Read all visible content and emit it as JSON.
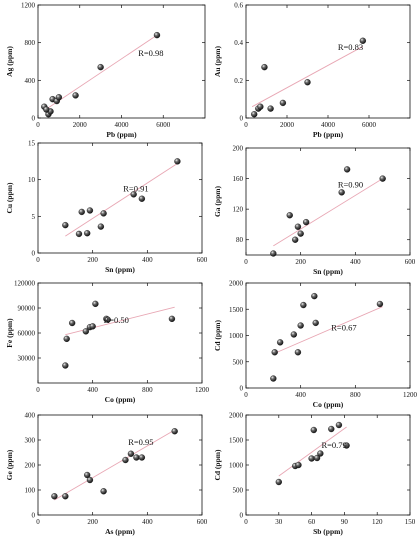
{
  "chart_data": [
    {
      "type": "scatter",
      "xlabel": "Pb (ppm)",
      "ylabel": "Ag (ppm)",
      "xlim": [
        0,
        8000
      ],
      "ylim": [
        0,
        1200
      ],
      "xticks": [
        0,
        2000,
        4000,
        6000
      ],
      "yticks": [
        0,
        400,
        800,
        1200
      ],
      "x": [
        300,
        500,
        600,
        400,
        700,
        900,
        1000,
        1800,
        3000,
        5700
      ],
      "y": [
        120,
        40,
        70,
        90,
        200,
        180,
        220,
        240,
        540,
        880
      ],
      "fit": [
        [
          300,
          80
        ],
        [
          5700,
          880
        ]
      ],
      "annotation": "R=0.98"
    },
    {
      "type": "scatter",
      "xlabel": "Pb (ppm)",
      "ylabel": "Au (ppm)",
      "xlim": [
        0,
        8000
      ],
      "ylim": [
        0,
        0.6
      ],
      "xticks": [
        0,
        2000,
        4000,
        6000
      ],
      "yticks": [
        0,
        0.2,
        0.4,
        0.6
      ],
      "x": [
        400,
        600,
        700,
        900,
        1200,
        1800,
        3000,
        5700
      ],
      "y": [
        0.02,
        0.05,
        0.06,
        0.27,
        0.05,
        0.08,
        0.19,
        0.41
      ],
      "fit": [
        [
          300,
          0.06
        ],
        [
          5700,
          0.38
        ]
      ],
      "annotation": "R=0.83"
    },
    {
      "type": "scatter",
      "xlabel": "Sn (ppm)",
      "ylabel": "Cu (ppm)",
      "xlim": [
        0,
        600
      ],
      "ylim": [
        0,
        15
      ],
      "xticks": [
        0,
        200,
        400,
        600
      ],
      "yticks": [
        0,
        5,
        10,
        15
      ],
      "x": [
        100,
        150,
        160,
        180,
        190,
        230,
        240,
        350,
        380,
        510
      ],
      "y": [
        3.8,
        2.6,
        5.6,
        2.7,
        5.8,
        3.6,
        5.4,
        8.0,
        7.4,
        12.5
      ],
      "fit": [
        [
          100,
          2.3
        ],
        [
          510,
          12.2
        ]
      ],
      "annotation": "R=0.91"
    },
    {
      "type": "scatter",
      "xlabel": "Sn (ppm)",
      "ylabel": "Ga (ppm)",
      "xlim": [
        0,
        600
      ],
      "ylim": [
        60,
        200
      ],
      "xticks": [
        0,
        200,
        400,
        600
      ],
      "yticks": [
        80,
        120,
        160,
        200
      ],
      "x": [
        100,
        160,
        180,
        190,
        200,
        220,
        350,
        370,
        500
      ],
      "y": [
        62,
        112,
        80,
        97,
        88,
        103,
        142,
        172,
        160
      ],
      "fit": [
        [
          100,
          72
        ],
        [
          500,
          160
        ]
      ],
      "annotation": "R=0.90"
    },
    {
      "type": "scatter",
      "xlabel": "Co (ppm)",
      "ylabel": "Fe (ppm)",
      "xlim": [
        0,
        1200
      ],
      "ylim": [
        0,
        120000
      ],
      "xticks": [
        0,
        400,
        800,
        1200
      ],
      "yticks": [
        30000,
        60000,
        90000,
        120000
      ],
      "x": [
        200,
        210,
        250,
        350,
        380,
        400,
        420,
        500,
        510,
        980
      ],
      "y": [
        21000,
        53000,
        72000,
        62000,
        67000,
        68000,
        95000,
        77000,
        76000,
        77000
      ],
      "fit": [
        [
          200,
          58000
        ],
        [
          1000,
          91000
        ]
      ],
      "annotation": "R=0.50"
    },
    {
      "type": "scatter",
      "xlabel": "Co (ppm)",
      "ylabel": "Cd (ppm)",
      "xlim": [
        0,
        1200
      ],
      "ylim": [
        0,
        2000
      ],
      "xticks": [
        0,
        400,
        800,
        1200
      ],
      "yticks": [
        0,
        500,
        1000,
        1500,
        2000
      ],
      "x": [
        200,
        210,
        250,
        350,
        380,
        400,
        420,
        500,
        510,
        980
      ],
      "y": [
        180,
        680,
        870,
        1020,
        680,
        1190,
        1580,
        1750,
        1240,
        1600
      ],
      "fit": [
        [
          200,
          650
        ],
        [
          1000,
          1550
        ]
      ],
      "annotation": "R=0.67"
    },
    {
      "type": "scatter",
      "xlabel": "As (ppm)",
      "ylabel": "Ge (ppm)",
      "xlim": [
        0,
        600
      ],
      "ylim": [
        0,
        400
      ],
      "xticks": [
        0,
        200,
        400,
        600
      ],
      "yticks": [
        0,
        100,
        200,
        300,
        400
      ],
      "x": [
        60,
        100,
        180,
        190,
        240,
        320,
        340,
        360,
        380,
        500
      ],
      "y": [
        75,
        75,
        160,
        140,
        95,
        220,
        245,
        230,
        230,
        335
      ],
      "fit": [
        [
          60,
          60
        ],
        [
          500,
          340
        ]
      ],
      "annotation": "R=0.95"
    },
    {
      "type": "scatter",
      "xlabel": "Sb (ppm)",
      "ylabel": "Cd (ppm)",
      "xlim": [
        0,
        150
      ],
      "ylim": [
        0,
        2000
      ],
      "xticks": [
        0,
        30,
        60,
        90,
        120,
        150
      ],
      "yticks": [
        0,
        500,
        1000,
        1500,
        2000
      ],
      "x": [
        30,
        45,
        48,
        60,
        62,
        65,
        68,
        78,
        85,
        92
      ],
      "y": [
        660,
        980,
        1000,
        1130,
        1700,
        1140,
        1230,
        1720,
        1800,
        1390
      ],
      "fit": [
        [
          30,
          780
        ],
        [
          92,
          1760
        ]
      ],
      "annotation": "R=0.79"
    }
  ]
}
